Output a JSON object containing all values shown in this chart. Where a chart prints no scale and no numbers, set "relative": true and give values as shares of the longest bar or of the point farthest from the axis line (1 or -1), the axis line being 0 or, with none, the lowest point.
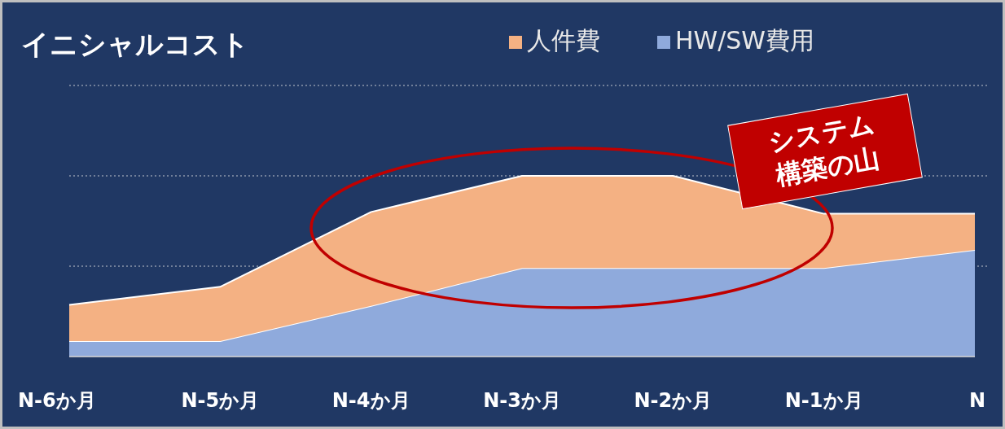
{
  "chart_data": {
    "type": "area",
    "stacked": true,
    "relative": true,
    "title": "イニシャルコスト",
    "categories": [
      "N-6か月",
      "N-5か月",
      "N-4か月",
      "N-3か月",
      "N-2か月",
      "N-1か月",
      "N"
    ],
    "series": [
      {
        "name": "HW/SW費用",
        "color": "#8faadc",
        "values": [
          0.086,
          0.086,
          0.28,
          0.49,
          0.49,
          0.49,
          0.59
        ]
      },
      {
        "name": "人件費",
        "color": "#f4b183",
        "values": [
          0.2,
          0.3,
          0.52,
          0.51,
          0.51,
          0.3,
          0.2
        ]
      }
    ],
    "ref_lines": [
      {
        "axis": "y",
        "value": 0.5,
        "color": "#8c96aa",
        "line_style": "dotted"
      },
      {
        "axis": "y",
        "value": 1,
        "color": "#8c96aa",
        "line_style": "dotted"
      },
      {
        "axis": "y",
        "value": 1.5,
        "color": "#8c96aa",
        "line_style": "dotted"
      }
    ],
    "legend": "top right",
    "annotations": [
      "システム構築の山"
    ]
  }
}
